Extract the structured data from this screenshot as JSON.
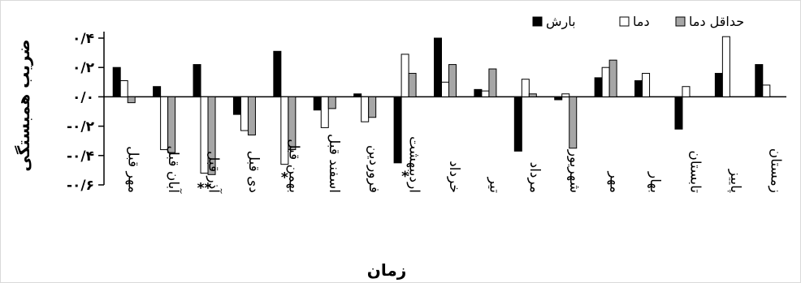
{
  "chart_data": {
    "type": "bar",
    "ylabel": "ضریب همبستگی",
    "xlabel": "زمان",
    "ylim": [
      -0.6,
      0.4
    ],
    "yticks": [
      {
        "value": 0.4,
        "label": "۰/۴"
      },
      {
        "value": 0.2,
        "label": "۰/۲"
      },
      {
        "value": 0.0,
        "label": "۰/۰"
      },
      {
        "value": -0.2,
        "label": "-۰/۲"
      },
      {
        "value": -0.4,
        "label": "-۰/۴"
      },
      {
        "value": -0.6,
        "label": "-۰/۶"
      }
    ],
    "categories": [
      "مهر قبل",
      "آبان قبل",
      "آذر قبل",
      "دی قبل",
      "بهمن قبل",
      "اسفند قبل",
      "فروردین",
      "اردیبهشت",
      "خرداد",
      "تیر",
      "مرداد",
      "شهریور",
      "مهر",
      "بهار",
      "تابستان",
      "پاییز",
      "زمستان"
    ],
    "series": [
      {
        "name": "بارش",
        "color": "#000000",
        "values": [
          0.2,
          0.07,
          0.22,
          -0.12,
          0.31,
          -0.09,
          0.02,
          -0.45,
          0.4,
          0.05,
          -0.37,
          -0.02,
          0.13,
          0.11,
          -0.22,
          0.16,
          0.22
        ]
      },
      {
        "name": "دما",
        "color": "#ffffff",
        "values": [
          0.11,
          -0.36,
          -0.52,
          -0.23,
          -0.46,
          -0.21,
          -0.17,
          0.29,
          0.1,
          0.04,
          0.12,
          0.02,
          0.2,
          0.16,
          0.07,
          0.41,
          0.08
        ]
      },
      {
        "name": "حداقل دما",
        "color": "#a6a6a6",
        "values": [
          -0.04,
          -0.38,
          -0.53,
          -0.26,
          -0.36,
          -0.08,
          -0.14,
          0.16,
          0.22,
          0.19,
          0.02,
          -0.35,
          0.25,
          0.0,
          0.0,
          0.0,
          0.0
        ]
      }
    ],
    "annotations": [
      {
        "category_index": 2,
        "text": "**"
      },
      {
        "category_index": 4,
        "text": "*"
      },
      {
        "category_index": 7,
        "text": "*"
      }
    ],
    "legend": {
      "placement": "top-right"
    },
    "grid": false
  }
}
